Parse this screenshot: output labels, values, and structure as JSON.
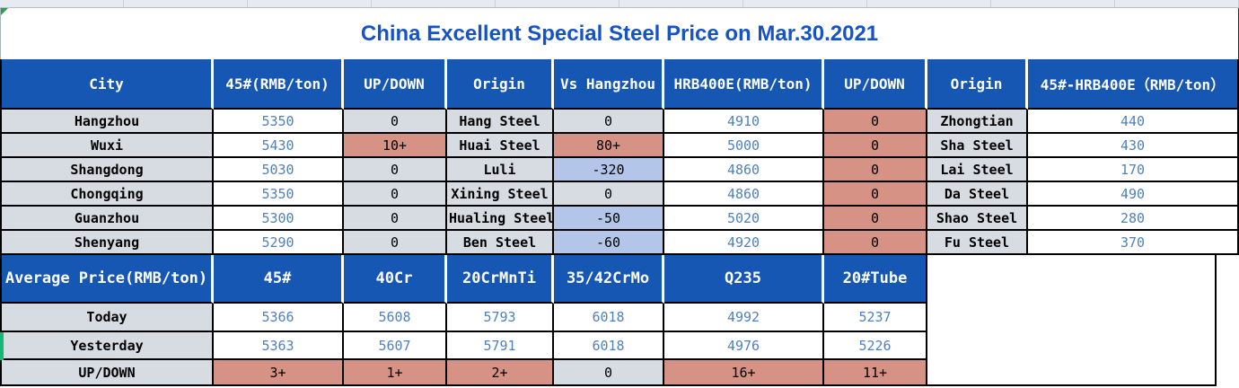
{
  "title": "China Excellent Special Steel Price on Mar.30.2021",
  "colors": {
    "header_blue": "#1757b4",
    "title_blue": "#1553c6",
    "number_blue": "#4f81bd",
    "up_salmon": "#d69284",
    "down_periwinkle": "#b3c6ea",
    "neutral_gray": "#d7dce3",
    "selection_green": "#16b878"
  },
  "price_table": {
    "headers": [
      "City",
      "45#(RMB/ton)",
      "UP/DOWN",
      "Origin",
      "Vs Hangzhou",
      "HRB400E(RMB/ton)",
      "UP/DOWN",
      "Origin",
      "45#-HRB400E（RMB/ton）"
    ],
    "rows": [
      {
        "city": "Hangzhou",
        "p45": "5350",
        "ud45": {
          "v": "0",
          "s": "zero"
        },
        "origin45": "Hang Steel",
        "vs": {
          "v": "0",
          "s": "zero"
        },
        "hrb": "4910",
        "udhrb": {
          "v": "0",
          "s": "up"
        },
        "originhrb": "Zhongtian",
        "diff": "440"
      },
      {
        "city": "Wuxi",
        "p45": "5430",
        "ud45": {
          "v": "10+",
          "s": "up"
        },
        "origin45": "Huai Steel",
        "vs": {
          "v": "80+",
          "s": "up"
        },
        "hrb": "5000",
        "udhrb": {
          "v": "0",
          "s": "up"
        },
        "originhrb": "Sha Steel",
        "diff": "430"
      },
      {
        "city": "Shangdong",
        "p45": "5030",
        "ud45": {
          "v": "0",
          "s": "zero"
        },
        "origin45": "Luli",
        "vs": {
          "v": "-320",
          "s": "down"
        },
        "hrb": "4860",
        "udhrb": {
          "v": "0",
          "s": "up"
        },
        "originhrb": "Lai Steel",
        "diff": "170"
      },
      {
        "city": "Chongqing",
        "p45": "5350",
        "ud45": {
          "v": "0",
          "s": "zero"
        },
        "origin45": "Xining Steel",
        "vs": {
          "v": "0",
          "s": "zero"
        },
        "hrb": "4860",
        "udhrb": {
          "v": "0",
          "s": "up"
        },
        "originhrb": "Da Steel",
        "diff": "490"
      },
      {
        "city": "Guanzhou",
        "p45": "5300",
        "ud45": {
          "v": "0",
          "s": "zero"
        },
        "origin45": "Hualing Steel",
        "vs": {
          "v": "-50",
          "s": "down"
        },
        "hrb": "5020",
        "udhrb": {
          "v": "0",
          "s": "up"
        },
        "originhrb": "Shao Steel",
        "diff": "280"
      },
      {
        "city": "Shenyang",
        "p45": "5290",
        "ud45": {
          "v": "0",
          "s": "zero"
        },
        "origin45": "Ben Steel",
        "vs": {
          "v": "-60",
          "s": "down"
        },
        "hrb": "4920",
        "udhrb": {
          "v": "0",
          "s": "up"
        },
        "originhrb": "Fu Steel",
        "diff": "370"
      }
    ]
  },
  "average_table": {
    "label": "Average Price(RMB/ton)",
    "grades": [
      "45#",
      "40Cr",
      "20CrMnTi",
      "35/42CrMo",
      "Q235",
      "20#Tube"
    ],
    "today": {
      "label": "Today",
      "values": [
        "5366",
        "5608",
        "5793",
        "6018",
        "4992",
        "5237"
      ]
    },
    "yesterday": {
      "label": "Yesterday",
      "values": [
        "5363",
        "5607",
        "5791",
        "6018",
        "4976",
        "5226"
      ]
    },
    "updown": {
      "label": "UP/DOWN",
      "values": [
        {
          "v": "3+",
          "s": "up"
        },
        {
          "v": "1+",
          "s": "up"
        },
        {
          "v": "2+",
          "s": "up"
        },
        {
          "v": "0",
          "s": "zero"
        },
        {
          "v": "16+",
          "s": "up"
        },
        {
          "v": "11+",
          "s": "up"
        }
      ]
    }
  }
}
